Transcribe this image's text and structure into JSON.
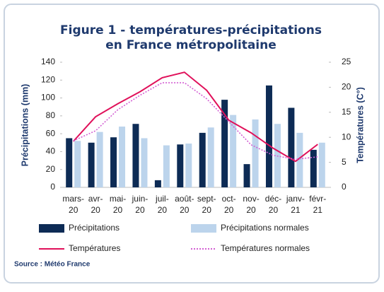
{
  "chart_data": {
    "type": "bar",
    "title": [
      "Figure 1 - températures-précipitations",
      "en France métropolitaine"
    ],
    "ylabel": "Précipitations (mm)",
    "y2label": "Températures (C°)",
    "source": "Source : Météo France",
    "categories": [
      "mars-20",
      "avr-20",
      "mai-20",
      "juin-20",
      "juil-20",
      "août-20",
      "sept-20",
      "oct-20",
      "nov-20",
      "déc-20",
      "janv-21",
      "févr-21"
    ],
    "series": [
      {
        "name": "Précipitations",
        "type": "bar",
        "color": "#0d2b55",
        "values": [
          55,
          50,
          56,
          71,
          8,
          48,
          61,
          98,
          26,
          114,
          89,
          42
        ]
      },
      {
        "name": "Précipitations normales",
        "type": "bar",
        "color": "#bcd4ec",
        "values": [
          52,
          62,
          68,
          55,
          47,
          49,
          67,
          81,
          76,
          71,
          61,
          50
        ]
      },
      {
        "name": "Températures",
        "type": "line",
        "axis": "y2",
        "style": "solid",
        "color": "#e0105a",
        "values": [
          9.2,
          14.1,
          16.7,
          19.1,
          21.9,
          23.0,
          19.4,
          13.4,
          10.9,
          7.8,
          5.2,
          8.6
        ]
      },
      {
        "name": "Températures normales",
        "type": "line",
        "axis": "y2",
        "style": "dotted",
        "color": "#d35fd3",
        "values": [
          9.3,
          11.3,
          15.5,
          18.4,
          20.9,
          20.9,
          17.7,
          13.1,
          8.5,
          6.4,
          5.6,
          6.1
        ]
      }
    ],
    "ylim": [
      0,
      140
    ],
    "yticks": [
      0,
      20,
      40,
      60,
      80,
      100,
      120,
      140
    ],
    "y2lim": [
      0,
      25
    ],
    "y2ticks": [
      0,
      5,
      10,
      15,
      20,
      25
    ],
    "legend": "bottom"
  }
}
